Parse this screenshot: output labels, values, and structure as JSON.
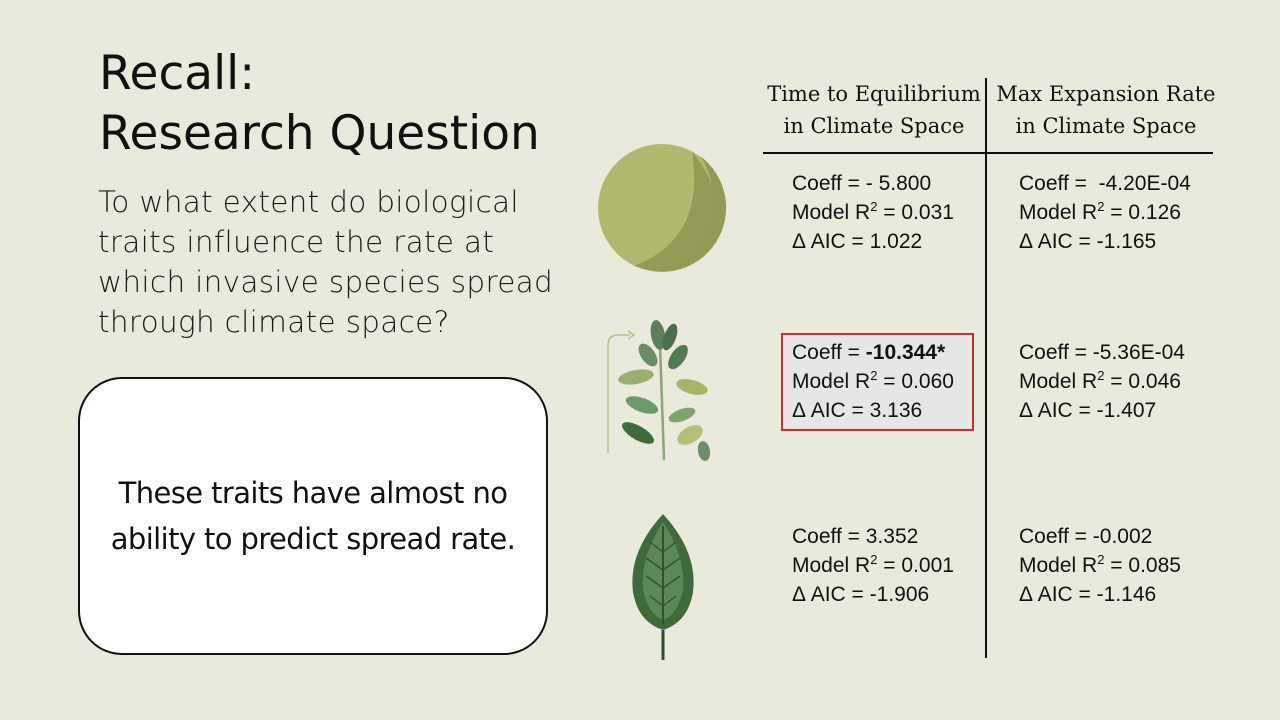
{
  "slide": {
    "title_line1": "Recall:",
    "title_line2": "Research Question",
    "question": "To what extent do biological traits influence the rate at which invasive species spread through climate space?",
    "callout": "These traits have almost no ability to predict spread rate."
  },
  "table": {
    "col1_line1": "Time to Equilibrium",
    "col1_line2": "in Climate Space",
    "col2_line1": "Max Expansion Rate",
    "col2_line2": "in Climate Space",
    "coeff_label": "Coeff =",
    "r2_label": "Model R",
    "r2_exp": "2",
    "aic_label": "Δ AIC =",
    "eq": "=",
    "rows": [
      {
        "icon": "seed-sphere-icon",
        "time": {
          "coeff": "- 5.800",
          "r2": "0.031",
          "aic": "1.022"
        },
        "rate": {
          "coeff": " -4.20E-04",
          "r2": "0.126",
          "aic": "-1.165"
        }
      },
      {
        "icon": "growing-plant-icon",
        "time": {
          "coeff": "-10.344*",
          "r2": "0.060",
          "aic": "3.136",
          "highlighted": true
        },
        "rate": {
          "coeff": "-5.36E-04",
          "r2": "0.046",
          "aic": "-1.407"
        }
      },
      {
        "icon": "leaf-icon",
        "time": {
          "coeff": "3.352",
          "r2": "0.001",
          "aic": "-1.906"
        },
        "rate": {
          "coeff": "-0.002",
          "r2": "0.085",
          "aic": "-1.146"
        }
      }
    ]
  },
  "colors": {
    "background": "#e9e9dc",
    "highlight_border": "#cc2b2b",
    "highlight_fill": "#e6e6e6",
    "sphere_light": "#b0b96e",
    "sphere_dark": "#929a55",
    "leaf_dark": "#3f6b3c",
    "leaf_light": "#a9b46a"
  }
}
